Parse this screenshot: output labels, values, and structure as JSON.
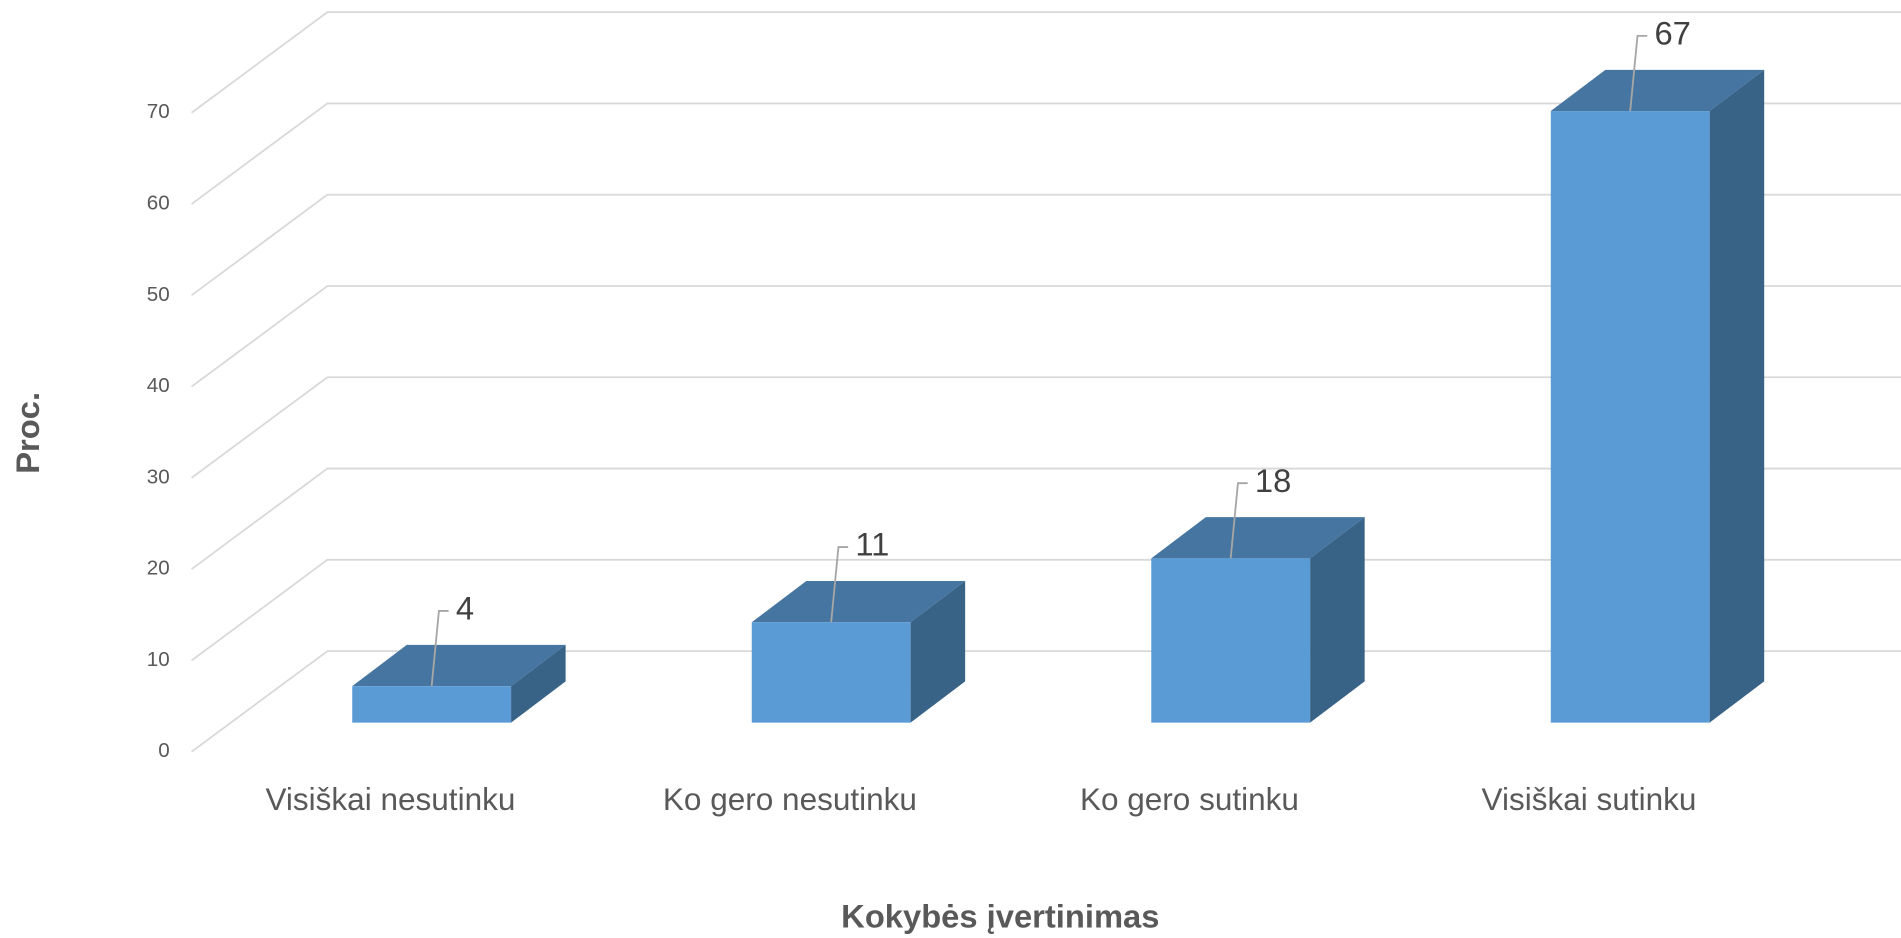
{
  "chart_data": {
    "type": "bar3d",
    "categories": [
      "Visiškai nesutinku",
      "Ko gero nesutinku",
      "Ko gero sutinku",
      "Visiškai sutinku"
    ],
    "values": [
      4,
      11,
      18,
      67
    ],
    "color": "#5b9bd5",
    "xlabel": "Kokybės įvertinimas",
    "ylabel": "Proc.",
    "ylim": [
      0,
      70
    ],
    "yticks": [
      0,
      10,
      20,
      30,
      40,
      50,
      60,
      70
    ],
    "grid": true
  }
}
